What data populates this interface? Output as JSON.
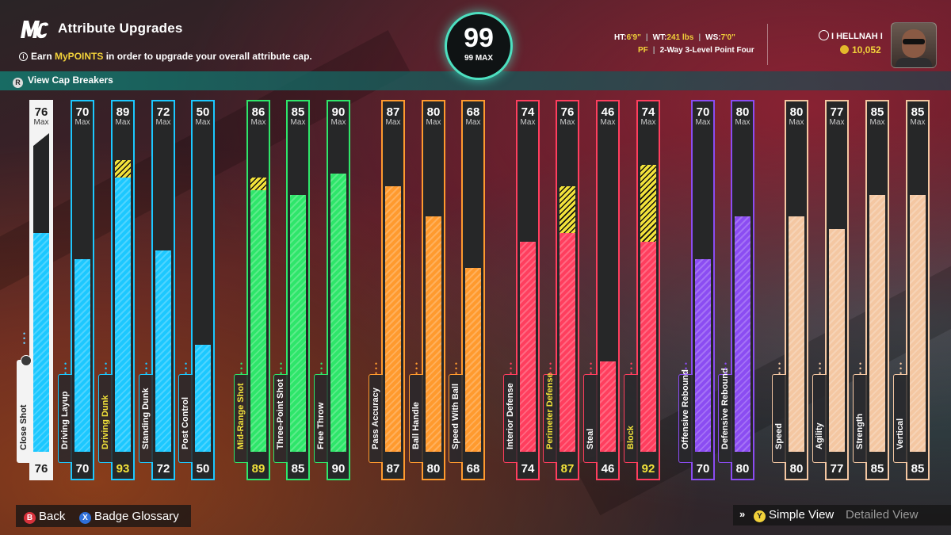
{
  "header": {
    "title": "Attribute Upgrades",
    "info_prefix": "Earn ",
    "info_highlight": "MyPOINTS",
    "info_suffix": " in order to upgrade your overall attribute cap.",
    "cap_breakers": "View Cap Breakers"
  },
  "overall": {
    "value": "99",
    "max_label": "99 MAX"
  },
  "player": {
    "ht_label": "HT:",
    "ht": "6'9\"",
    "wt_label": "WT:",
    "wt": "241 lbs",
    "ws_label": "WS:",
    "ws": "7'0\"",
    "position": "PF",
    "archetype": "2-Way 3-Level Point Four",
    "gamertag": "I HELLNAH I",
    "vc": "10,052"
  },
  "colors": {
    "finishing": "#1cc8ff",
    "shooting": "#2ee66a",
    "playmaking": "#ff9a2e",
    "defense": "#ff3e5e",
    "rebounding": "#8b4cf2",
    "physicals": "#f4c7a2",
    "boost": "#f2e23a"
  },
  "max_label": "Max",
  "attributes": [
    {
      "name": "Close Shot",
      "max": "76",
      "current": "76",
      "boosted": "",
      "group": "finishing"
    },
    {
      "name": "Driving Layup",
      "max": "70",
      "current": "70",
      "boosted": "",
      "group": "finishing"
    },
    {
      "name": "Driving Dunk",
      "max": "89",
      "current": "93",
      "boosted": "93",
      "group": "finishing"
    },
    {
      "name": "Standing Dunk",
      "max": "72",
      "current": "72",
      "boosted": "",
      "group": "finishing"
    },
    {
      "name": "Post Control",
      "max": "50",
      "current": "50",
      "boosted": "",
      "group": "finishing"
    },
    {
      "name": "Mid-Range Shot",
      "max": "86",
      "current": "89",
      "boosted": "89",
      "group": "shooting"
    },
    {
      "name": "Three-Point Shot",
      "max": "85",
      "current": "85",
      "boosted": "",
      "group": "shooting"
    },
    {
      "name": "Free Throw",
      "max": "90",
      "current": "90",
      "boosted": "",
      "group": "shooting"
    },
    {
      "name": "Pass Accuracy",
      "max": "87",
      "current": "87",
      "boosted": "",
      "group": "playmaking"
    },
    {
      "name": "Ball Handle",
      "max": "80",
      "current": "80",
      "boosted": "",
      "group": "playmaking"
    },
    {
      "name": "Speed With Ball",
      "max": "68",
      "current": "68",
      "boosted": "",
      "group": "playmaking"
    },
    {
      "name": "Interior Defense",
      "max": "74",
      "current": "74",
      "boosted": "",
      "group": "defense"
    },
    {
      "name": "Perimeter Defense",
      "max": "76",
      "current": "87",
      "boosted": "87",
      "group": "defense"
    },
    {
      "name": "Steal",
      "max": "46",
      "current": "46",
      "boosted": "",
      "group": "defense"
    },
    {
      "name": "Block",
      "max": "74",
      "current": "92",
      "boosted": "92",
      "group": "defense"
    },
    {
      "name": "Offensive Rebound",
      "max": "70",
      "current": "70",
      "boosted": "",
      "group": "rebounding"
    },
    {
      "name": "Defensive Rebound",
      "max": "80",
      "current": "80",
      "boosted": "",
      "group": "rebounding"
    },
    {
      "name": "Speed",
      "max": "80",
      "current": "80",
      "boosted": "",
      "group": "physicals"
    },
    {
      "name": "Agility",
      "max": "77",
      "current": "77",
      "boosted": "",
      "group": "physicals"
    },
    {
      "name": "Strength",
      "max": "85",
      "current": "85",
      "boosted": "",
      "group": "physicals"
    },
    {
      "name": "Vertical",
      "max": "85",
      "current": "85",
      "boosted": "",
      "group": "physicals"
    }
  ],
  "footer": {
    "back_key": "B",
    "back": "Back",
    "glossary_key": "X",
    "glossary": "Badge Glossary",
    "simple_key": "Y",
    "simple": "Simple View",
    "detailed": "Detailed View"
  }
}
